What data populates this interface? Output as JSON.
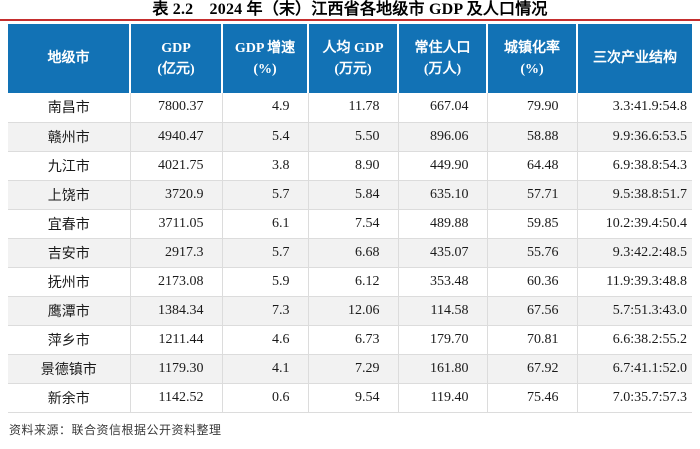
{
  "title": "表 2.2　2024 年（末）江西省各地级市 GDP 及人口情况",
  "colors": {
    "header_bg": "#1272b5",
    "header_text": "#ffffff",
    "top_line": "#c52e2e",
    "row_alt": "#f2f2f2",
    "grid_line": "#dcdcdc"
  },
  "table": {
    "headers": [
      {
        "line1": "地级市",
        "line2": ""
      },
      {
        "line1": "GDP",
        "line2": "(亿元)"
      },
      {
        "line1": "GDP 增速",
        "line2": "(%)"
      },
      {
        "line1": "人均 GDP",
        "line2": "(万元)"
      },
      {
        "line1": "常住人口",
        "line2": "(万人)"
      },
      {
        "line1": "城镇化率",
        "line2": "(%)"
      },
      {
        "line1": "三次产业结构",
        "line2": ""
      }
    ],
    "rows": [
      {
        "city": "南昌市",
        "gdp": "7800.37",
        "growth": "4.9",
        "per_capita": "11.78",
        "population": "667.04",
        "urbanization": "79.90",
        "industry": "3.3:41.9:54.8"
      },
      {
        "city": "赣州市",
        "gdp": "4940.47",
        "growth": "5.4",
        "per_capita": "5.50",
        "population": "896.06",
        "urbanization": "58.88",
        "industry": "9.9:36.6:53.5"
      },
      {
        "city": "九江市",
        "gdp": "4021.75",
        "growth": "3.8",
        "per_capita": "8.90",
        "population": "449.90",
        "urbanization": "64.48",
        "industry": "6.9:38.8:54.3"
      },
      {
        "city": "上饶市",
        "gdp": "3720.9",
        "growth": "5.7",
        "per_capita": "5.84",
        "population": "635.10",
        "urbanization": "57.71",
        "industry": "9.5:38.8:51.7"
      },
      {
        "city": "宜春市",
        "gdp": "3711.05",
        "growth": "6.1",
        "per_capita": "7.54",
        "population": "489.88",
        "urbanization": "59.85",
        "industry": "10.2:39.4:50.4"
      },
      {
        "city": "吉安市",
        "gdp": "2917.3",
        "growth": "5.7",
        "per_capita": "6.68",
        "population": "435.07",
        "urbanization": "55.76",
        "industry": "9.3:42.2:48.5"
      },
      {
        "city": "抚州市",
        "gdp": "2173.08",
        "growth": "5.9",
        "per_capita": "6.12",
        "population": "353.48",
        "urbanization": "60.36",
        "industry": "11.9:39.3:48.8"
      },
      {
        "city": "鹰潭市",
        "gdp": "1384.34",
        "growth": "7.3",
        "per_capita": "12.06",
        "population": "114.58",
        "urbanization": "67.56",
        "industry": "5.7:51.3:43.0"
      },
      {
        "city": "萍乡市",
        "gdp": "1211.44",
        "growth": "4.6",
        "per_capita": "6.73",
        "population": "179.70",
        "urbanization": "70.81",
        "industry": "6.6:38.2:55.2"
      },
      {
        "city": "景德镇市",
        "gdp": "1179.30",
        "growth": "4.1",
        "per_capita": "7.29",
        "population": "161.80",
        "urbanization": "67.92",
        "industry": "6.7:41.1:52.0"
      },
      {
        "city": "新余市",
        "gdp": "1142.52",
        "growth": "0.6",
        "per_capita": "9.54",
        "population": "119.40",
        "urbanization": "75.46",
        "industry": "7.0:35.7:57.3"
      }
    ]
  },
  "footer": {
    "source": "资料来源：联合资信根据公开资料整理"
  }
}
